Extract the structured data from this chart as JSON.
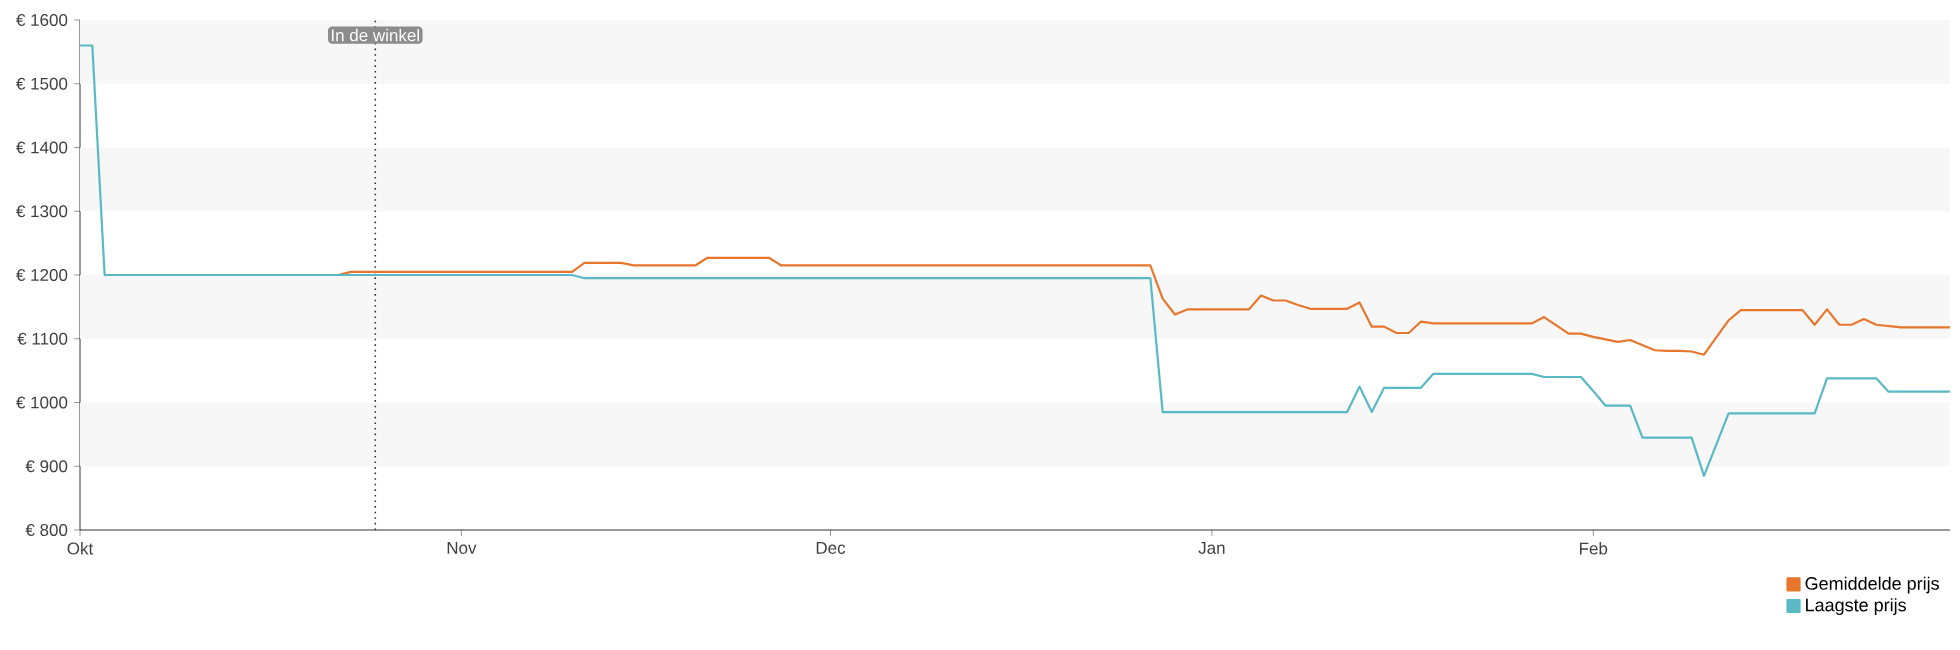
{
  "chart_data": {
    "type": "line",
    "categories": [
      "Okt",
      null,
      null,
      null,
      null,
      null,
      null,
      null,
      null,
      null,
      null,
      null,
      null,
      null,
      null,
      null,
      null,
      null,
      null,
      null,
      null,
      null,
      null,
      null,
      null,
      null,
      null,
      null,
      null,
      null,
      null,
      "Nov",
      null,
      null,
      null,
      null,
      null,
      null,
      null,
      null,
      null,
      null,
      null,
      null,
      null,
      null,
      null,
      null,
      null,
      null,
      null,
      null,
      null,
      null,
      null,
      null,
      null,
      null,
      null,
      null,
      null,
      "Dec",
      null,
      null,
      null,
      null,
      null,
      null,
      null,
      null,
      null,
      null,
      null,
      null,
      null,
      null,
      null,
      null,
      null,
      null,
      null,
      null,
      null,
      null,
      null,
      null,
      null,
      null,
      null,
      null,
      null,
      null,
      "Jan",
      null,
      null,
      null,
      null,
      null,
      null,
      null,
      null,
      null,
      null,
      null,
      null,
      null,
      null,
      null,
      null,
      null,
      null,
      null,
      null,
      null,
      null,
      null,
      null,
      null,
      null,
      null,
      null,
      null,
      null,
      "Feb",
      null,
      null,
      null,
      null,
      null,
      null,
      null,
      null,
      null,
      null,
      null,
      null,
      null,
      null,
      null,
      null,
      null,
      null,
      null,
      null,
      null,
      null,
      null,
      null,
      null,
      null,
      null,
      null,
      null
    ],
    "ylim": [
      800,
      1600
    ],
    "yticks": [
      {
        "value": 800,
        "label": "€ 800"
      },
      {
        "value": 900,
        "label": "€ 900"
      },
      {
        "value": 1000,
        "label": "€ 1000"
      },
      {
        "value": 1100,
        "label": "€ 1100"
      },
      {
        "value": 1200,
        "label": "€ 1200"
      },
      {
        "value": 1300,
        "label": "€ 1300"
      },
      {
        "value": 1400,
        "label": "€ 1400"
      },
      {
        "value": 1500,
        "label": "€ 1500"
      },
      {
        "value": 1600,
        "label": "€ 1600"
      }
    ],
    "legend": "bottom right",
    "line_style": "solid",
    "marker": "none",
    "bands": [
      {
        "axis": "y",
        "from": 900,
        "to": 1000,
        "color": "#f7f7f7"
      },
      {
        "axis": "y",
        "from": 1100,
        "to": 1200,
        "color": "#f7f7f7"
      },
      {
        "axis": "y",
        "from": 1300,
        "to": 1400,
        "color": "#f7f7f7"
      },
      {
        "axis": "y",
        "from": 1500,
        "to": 1600,
        "color": "#f7f7f7"
      }
    ],
    "annotations": [
      "In de winkel"
    ],
    "series": [
      {
        "name": "Gemiddelde prijs",
        "color": "#e8772e",
        "values": [
          null,
          null,
          null,
          null,
          null,
          null,
          null,
          null,
          null,
          null,
          null,
          null,
          null,
          null,
          null,
          null,
          null,
          null,
          null,
          null,
          null,
          1200,
          1205,
          1205,
          1205,
          1205,
          1205,
          1205,
          1205,
          1205,
          1205,
          1205,
          1205,
          1205,
          1205,
          1205,
          1205,
          1205,
          1205,
          1205,
          1205,
          1219,
          1219,
          1219,
          1219,
          1215,
          1215,
          1215,
          1215,
          1215,
          1215,
          1227,
          1227,
          1227,
          1227,
          1227,
          1227,
          1215,
          1215,
          1215,
          1215,
          1215,
          1215,
          1215,
          1215,
          1215,
          1215,
          1215,
          1215,
          1215,
          1215,
          1215,
          1215,
          1215,
          1215,
          1215,
          1215,
          1215,
          1215,
          1215,
          1215,
          1215,
          1215,
          1215,
          1215,
          1215,
          1215,
          1215,
          1163,
          1138,
          1146,
          1146,
          1146,
          1146,
          1146,
          1146,
          1168,
          1160,
          1160,
          1153,
          1147,
          1147,
          1147,
          1147,
          1157,
          1119,
          1119,
          1109,
          1109,
          1127,
          1124,
          1124,
          1124,
          1124,
          1124,
          1124,
          1124,
          1124,
          1124,
          1134,
          1121,
          1108,
          1108,
          1103,
          1099,
          1095,
          1098,
          1090,
          1082,
          1081,
          1081,
          1080,
          1075,
          1102,
          1129,
          1145,
          1145,
          1145,
          1145,
          1145,
          1145,
          1122,
          1146,
          1122,
          1122,
          1131,
          1122,
          1120,
          1118,
          1118,
          1118,
          1118,
          1118
        ]
      },
      {
        "name": "Laagste prijs",
        "color": "#5ab9c5",
        "values": [
          1560,
          1560,
          1200,
          1200,
          1200,
          1200,
          1200,
          1200,
          1200,
          1200,
          1200,
          1200,
          1200,
          1200,
          1200,
          1200,
          1200,
          1200,
          1200,
          1200,
          1200,
          1200,
          1200,
          1200,
          1200,
          1200,
          1200,
          1200,
          1200,
          1200,
          1200,
          1200,
          1200,
          1200,
          1200,
          1200,
          1200,
          1200,
          1200,
          1200,
          1200,
          1195,
          1195,
          1195,
          1195,
          1195,
          1195,
          1195,
          1195,
          1195,
          1195,
          1195,
          1195,
          1195,
          1195,
          1195,
          1195,
          1195,
          1195,
          1195,
          1195,
          1195,
          1195,
          1195,
          1195,
          1195,
          1195,
          1195,
          1195,
          1195,
          1195,
          1195,
          1195,
          1195,
          1195,
          1195,
          1195,
          1195,
          1195,
          1195,
          1195,
          1195,
          1195,
          1195,
          1195,
          1195,
          1195,
          1195,
          985,
          985,
          985,
          985,
          985,
          985,
          985,
          985,
          985,
          985,
          985,
          985,
          985,
          985,
          985,
          985,
          1025,
          985,
          1023,
          1023,
          1023,
          1023,
          1045,
          1045,
          1045,
          1045,
          1045,
          1045,
          1045,
          1045,
          1045,
          1040,
          1040,
          1040,
          1040,
          1018,
          995,
          995,
          995,
          945,
          945,
          945,
          945,
          945,
          885,
          934,
          983,
          983,
          983,
          983,
          983,
          983,
          983,
          983,
          1038,
          1038,
          1038,
          1038,
          1038,
          1017,
          1017,
          1017,
          1017,
          1017,
          1017
        ]
      }
    ]
  }
}
